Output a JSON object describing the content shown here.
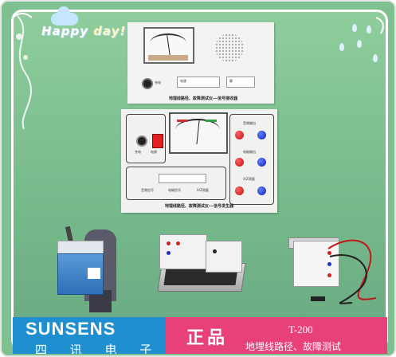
{
  "header": {
    "happy": "Happy",
    "day": "day!"
  },
  "receiver_panel": {
    "caption": "地埋线路径、故障测试仪---信号接收器",
    "labels": [
      "充电",
      "电源",
      "静"
    ]
  },
  "generator_panel": {
    "caption": "地埋线路径、故障测试仪---信号发生器",
    "labels": [
      "充电",
      "电源",
      "音频信号",
      "电磁信号",
      "X/Z测量",
      "音频输出",
      "电磁输出",
      "X/Z测量"
    ]
  },
  "banner": {
    "brand_en": "SUNSENS",
    "brand_cn": "四 讯 电 子",
    "genuine": "正品",
    "model": "T-200",
    "model_desc": "地埋线路径、故障测试"
  },
  "colors": {
    "background_green": "#7fc090",
    "banner_blue": "#1f8fd0",
    "banner_pink": "#e8407a"
  }
}
